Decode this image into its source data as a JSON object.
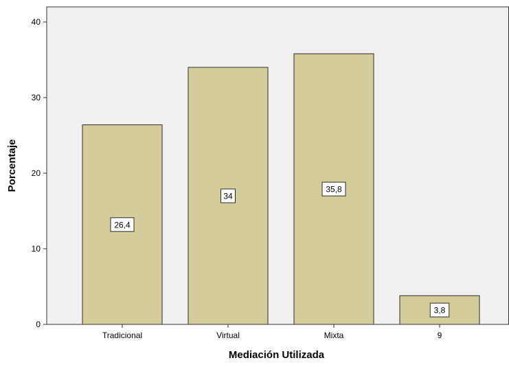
{
  "chart_data": {
    "type": "bar",
    "categories": [
      "Tradicional",
      "Virtual",
      "Mixta",
      "9"
    ],
    "values": [
      26.4,
      34,
      35.8,
      3.8
    ],
    "value_labels": [
      "26,4",
      "34",
      "35,8",
      "3,8"
    ],
    "title": "",
    "xlabel": "Mediación Utilizada",
    "ylabel": "Porcentaje",
    "ylim": [
      0,
      42
    ],
    "yticks": [
      0,
      10,
      20,
      30,
      40
    ],
    "grid": false,
    "colors": {
      "plot_background": "#f0f0f0",
      "bar_fill": "#d4cc9a",
      "bar_stroke": "#2b2b2b",
      "axis": "#333333",
      "label_box_fill": "#ffffff",
      "text": "#000000"
    }
  }
}
